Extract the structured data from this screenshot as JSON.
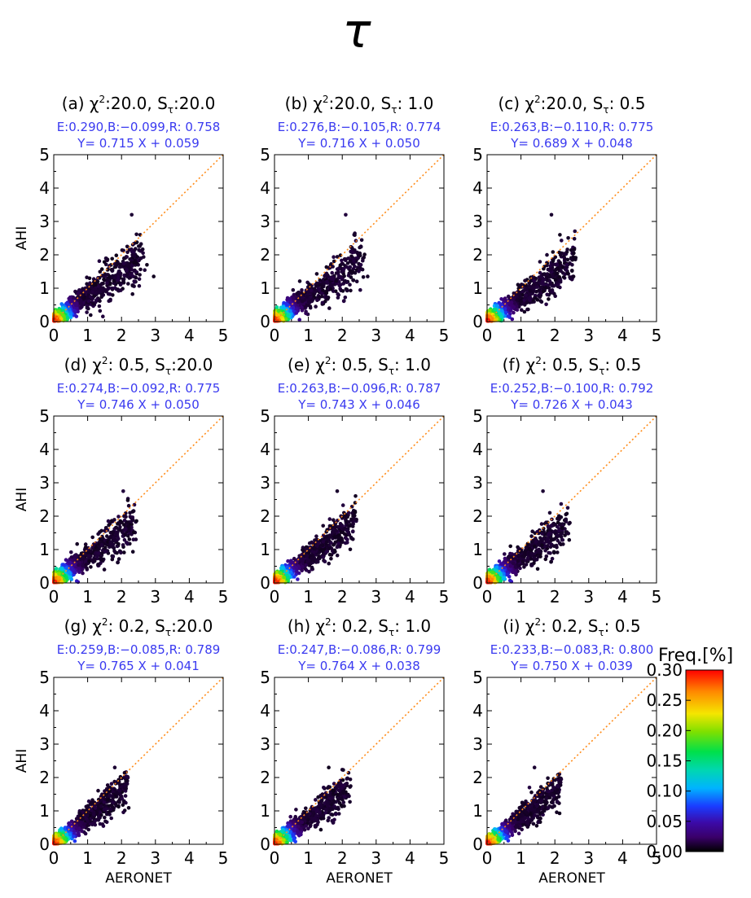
{
  "figure": {
    "title": "τ",
    "x_axis_label": "AERONET",
    "y_axis_label": "AHI",
    "colorbar": {
      "label": "Freq.[%]",
      "ticks": [
        "0.00",
        "0.05",
        "0.10",
        "0.15",
        "0.20",
        "0.25",
        "0.30"
      ],
      "min": 0,
      "max": 0.3
    },
    "one_to_one_line_color": "#ff8c1a",
    "stats_text_color": "#3a3af0"
  },
  "chart_data": [
    {
      "type": "scatter",
      "panel": "(a)",
      "title_prefix": "(a) χ",
      "title_sup": "2",
      "title_mid": ":20.0, S",
      "title_sub": "τ",
      "title_end": ":20.0",
      "stats_line1": "E:0.290,B:−0.099,R: 0.758",
      "stats_line2": "Y= 0.715 X +  0.059",
      "E": 0.29,
      "B": -0.099,
      "R": 0.758,
      "slope": 0.715,
      "intercept": 0.059,
      "xlim": [
        0,
        5
      ],
      "ylim": [
        0,
        5
      ],
      "xticks": [
        0,
        1,
        2,
        3,
        4,
        5
      ],
      "yticks": [
        0,
        1,
        2,
        3,
        4,
        5
      ]
    },
    {
      "type": "scatter",
      "panel": "(b)",
      "title_prefix": "(b) χ",
      "title_sup": "2",
      "title_mid": ":20.0, S",
      "title_sub": "τ",
      "title_end": ": 1.0",
      "stats_line1": "E:0.276,B:−0.105,R: 0.774",
      "stats_line2": "Y= 0.716 X +  0.050",
      "E": 0.276,
      "B": -0.105,
      "R": 0.774,
      "slope": 0.716,
      "intercept": 0.05,
      "xlim": [
        0,
        5
      ],
      "ylim": [
        0,
        5
      ],
      "xticks": [
        0,
        1,
        2,
        3,
        4,
        5
      ],
      "yticks": [
        0,
        1,
        2,
        3,
        4,
        5
      ]
    },
    {
      "type": "scatter",
      "panel": "(c)",
      "title_prefix": "(c) χ",
      "title_sup": "2",
      "title_mid": ":20.0, S",
      "title_sub": "τ",
      "title_end": ": 0.5",
      "stats_line1": "E:0.263,B:−0.110,R: 0.775",
      "stats_line2": "Y= 0.689 X +  0.048",
      "E": 0.263,
      "B": -0.11,
      "R": 0.775,
      "slope": 0.689,
      "intercept": 0.048,
      "xlim": [
        0,
        5
      ],
      "ylim": [
        0,
        5
      ],
      "xticks": [
        0,
        1,
        2,
        3,
        4,
        5
      ],
      "yticks": [
        0,
        1,
        2,
        3,
        4,
        5
      ]
    },
    {
      "type": "scatter",
      "panel": "(d)",
      "title_prefix": "(d) χ",
      "title_sup": "2",
      "title_mid": ": 0.5, S",
      "title_sub": "τ",
      "title_end": ":20.0",
      "stats_line1": "E:0.274,B:−0.092,R: 0.775",
      "stats_line2": "Y= 0.746 X +  0.050",
      "E": 0.274,
      "B": -0.092,
      "R": 0.775,
      "slope": 0.746,
      "intercept": 0.05,
      "xlim": [
        0,
        5
      ],
      "ylim": [
        0,
        5
      ],
      "xticks": [
        0,
        1,
        2,
        3,
        4,
        5
      ],
      "yticks": [
        0,
        1,
        2,
        3,
        4,
        5
      ]
    },
    {
      "type": "scatter",
      "panel": "(e)",
      "title_prefix": "(e) χ",
      "title_sup": "2",
      "title_mid": ": 0.5, S",
      "title_sub": "τ",
      "title_end": ": 1.0",
      "stats_line1": "E:0.263,B:−0.096,R: 0.787",
      "stats_line2": "Y= 0.743 X +  0.046",
      "E": 0.263,
      "B": -0.096,
      "R": 0.787,
      "slope": 0.743,
      "intercept": 0.046,
      "xlim": [
        0,
        5
      ],
      "ylim": [
        0,
        5
      ],
      "xticks": [
        0,
        1,
        2,
        3,
        4,
        5
      ],
      "yticks": [
        0,
        1,
        2,
        3,
        4,
        5
      ]
    },
    {
      "type": "scatter",
      "panel": "(f)",
      "title_prefix": "(f) χ",
      "title_sup": "2",
      "title_mid": ": 0.5, S",
      "title_sub": "τ",
      "title_end": ": 0.5",
      "stats_line1": "E:0.252,B:−0.100,R: 0.792",
      "stats_line2": "Y= 0.726 X +  0.043",
      "E": 0.252,
      "B": -0.1,
      "R": 0.792,
      "slope": 0.726,
      "intercept": 0.043,
      "xlim": [
        0,
        5
      ],
      "ylim": [
        0,
        5
      ],
      "xticks": [
        0,
        1,
        2,
        3,
        4,
        5
      ],
      "yticks": [
        0,
        1,
        2,
        3,
        4,
        5
      ]
    },
    {
      "type": "scatter",
      "panel": "(g)",
      "title_prefix": "(g) χ",
      "title_sup": "2",
      "title_mid": ": 0.2, S",
      "title_sub": "τ",
      "title_end": ":20.0",
      "stats_line1": "E:0.259,B:−0.085,R: 0.789",
      "stats_line2": "Y= 0.765 X +  0.041",
      "E": 0.259,
      "B": -0.085,
      "R": 0.789,
      "slope": 0.765,
      "intercept": 0.041,
      "xlim": [
        0,
        5
      ],
      "ylim": [
        0,
        5
      ],
      "xticks": [
        0,
        1,
        2,
        3,
        4,
        5
      ],
      "yticks": [
        0,
        1,
        2,
        3,
        4,
        5
      ]
    },
    {
      "type": "scatter",
      "panel": "(h)",
      "title_prefix": "(h) χ",
      "title_sup": "2",
      "title_mid": ": 0.2, S",
      "title_sub": "τ",
      "title_end": ": 1.0",
      "stats_line1": "E:0.247,B:−0.086,R: 0.799",
      "stats_line2": "Y= 0.764 X +  0.038",
      "E": 0.247,
      "B": -0.086,
      "R": 0.799,
      "slope": 0.764,
      "intercept": 0.038,
      "xlim": [
        0,
        5
      ],
      "ylim": [
        0,
        5
      ],
      "xticks": [
        0,
        1,
        2,
        3,
        4,
        5
      ],
      "yticks": [
        0,
        1,
        2,
        3,
        4,
        5
      ]
    },
    {
      "type": "scatter",
      "panel": "(i)",
      "title_prefix": "(i) χ",
      "title_sup": "2",
      "title_mid": ": 0.2, S",
      "title_sub": "τ",
      "title_end": ": 0.5",
      "stats_line1": "E:0.233,B:−0.083,R: 0.800",
      "stats_line2": "Y= 0.750 X +  0.039",
      "E": 0.233,
      "B": -0.083,
      "R": 0.8,
      "slope": 0.75,
      "intercept": 0.039,
      "xlim": [
        0,
        5
      ],
      "ylim": [
        0,
        5
      ],
      "xticks": [
        0,
        1,
        2,
        3,
        4,
        5
      ],
      "yticks": [
        0,
        1,
        2,
        3,
        4,
        5
      ]
    }
  ]
}
